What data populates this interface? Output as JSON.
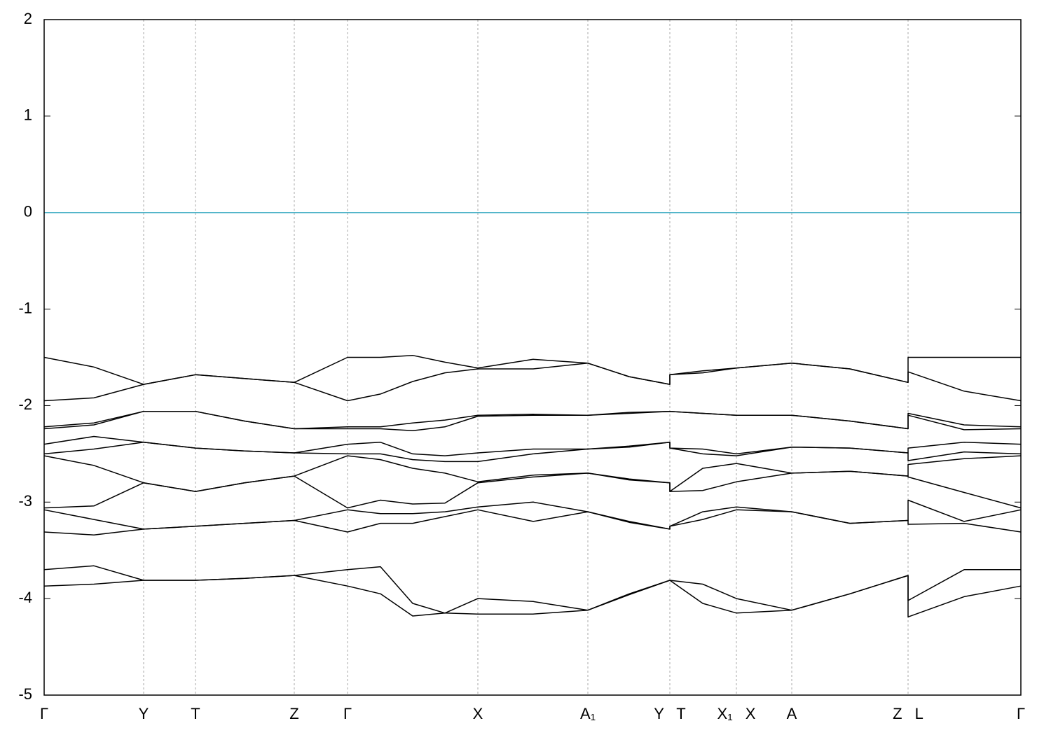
{
  "chart_data": {
    "type": "line",
    "x": [
      0,
      0.71,
      1.42,
      2.16,
      2.86,
      3.57,
      4.33,
      4.8,
      5.26,
      5.72,
      6.19,
      6.98,
      7.76,
      8.35,
      8.93,
      8.93,
      9.4,
      9.88,
      10.67,
      11.5,
      12.33,
      12.33,
      13.13,
      13.94
    ],
    "xlim": [
      0,
      13.94
    ],
    "xticks": [
      {
        "value": 0,
        "label": "Γ"
      },
      {
        "value": 1.42,
        "label": "Y"
      },
      {
        "value": 2.16,
        "label": "T"
      },
      {
        "value": 3.57,
        "label": "Z"
      },
      {
        "value": 4.33,
        "label": "Γ"
      },
      {
        "value": 6.19,
        "label": "X"
      },
      {
        "value": 7.76,
        "label": "A₁"
      },
      {
        "value": 8.93,
        "label": "Y T"
      },
      {
        "value": 9.88,
        "label": "X₁ X"
      },
      {
        "value": 10.67,
        "label": "A"
      },
      {
        "value": 12.33,
        "label": "Z L"
      },
      {
        "value": 13.94,
        "label": "Γ"
      }
    ],
    "ylim": [
      -5,
      2
    ],
    "yticks": [
      -5,
      -4,
      -3,
      -2,
      -1,
      0,
      1,
      2
    ],
    "grid": true,
    "reference_line": {
      "value": 0,
      "color": "#4fb3c8"
    },
    "series": [
      {
        "color": "#000000",
        "values": [
          -1.5,
          -1.6,
          -1.78,
          -1.68,
          -1.72,
          -1.76,
          -1.5,
          -1.5,
          -1.48,
          -1.55,
          -1.61,
          -1.52,
          -1.56,
          -1.7,
          -1.78,
          -1.68,
          -1.64,
          -1.61,
          -1.56,
          -1.62,
          -1.76,
          -1.5,
          -1.5,
          -1.5
        ]
      },
      {
        "color": "#000000",
        "values": [
          -1.95,
          -1.92,
          -1.78,
          -1.68,
          -1.72,
          -1.76,
          -1.95,
          -1.88,
          -1.75,
          -1.66,
          -1.62,
          -1.62,
          -1.56,
          -1.7,
          -1.78,
          -1.68,
          -1.66,
          -1.61,
          -1.56,
          -1.62,
          -1.76,
          -1.65,
          -1.85,
          -1.95
        ]
      },
      {
        "color": "#000000",
        "values": [
          -2.22,
          -2.18,
          -2.06,
          -2.06,
          -2.16,
          -2.24,
          -2.22,
          -2.22,
          -2.18,
          -2.15,
          -2.1,
          -2.09,
          -2.1,
          -2.07,
          -2.06,
          -2.06,
          -2.08,
          -2.1,
          -2.1,
          -2.16,
          -2.24,
          -2.08,
          -2.2,
          -2.22
        ]
      },
      {
        "color": "#000000",
        "values": [
          -2.24,
          -2.2,
          -2.06,
          -2.06,
          -2.16,
          -2.24,
          -2.24,
          -2.24,
          -2.26,
          -2.22,
          -2.11,
          -2.1,
          -2.1,
          -2.08,
          -2.06,
          -2.06,
          -2.08,
          -2.1,
          -2.1,
          -2.16,
          -2.24,
          -2.1,
          -2.25,
          -2.24
        ]
      },
      {
        "color": "#000000",
        "values": [
          -2.4,
          -2.32,
          -2.38,
          -2.44,
          -2.47,
          -2.49,
          -2.4,
          -2.38,
          -2.5,
          -2.52,
          -2.49,
          -2.45,
          -2.45,
          -2.42,
          -2.38,
          -2.44,
          -2.45,
          -2.5,
          -2.43,
          -2.44,
          -2.49,
          -2.44,
          -2.38,
          -2.4
        ]
      },
      {
        "color": "#000000",
        "values": [
          -2.5,
          -2.45,
          -2.38,
          -2.44,
          -2.47,
          -2.49,
          -2.5,
          -2.5,
          -2.56,
          -2.58,
          -2.58,
          -2.5,
          -2.45,
          -2.43,
          -2.38,
          -2.44,
          -2.5,
          -2.52,
          -2.43,
          -2.44,
          -2.49,
          -2.57,
          -2.48,
          -2.5
        ]
      },
      {
        "color": "#000000",
        "values": [
          -2.52,
          -2.62,
          -2.8,
          -2.89,
          -2.8,
          -2.73,
          -2.52,
          -2.56,
          -2.65,
          -2.7,
          -2.79,
          -2.72,
          -2.7,
          -2.76,
          -2.8,
          -2.89,
          -2.65,
          -2.6,
          -2.7,
          -2.68,
          -2.73,
          -2.61,
          -2.55,
          -2.52
        ]
      },
      {
        "color": "#000000",
        "values": [
          -3.06,
          -3.04,
          -2.8,
          -2.89,
          -2.8,
          -2.73,
          -3.06,
          -2.98,
          -3.02,
          -3.01,
          -2.8,
          -2.74,
          -2.7,
          -2.77,
          -2.8,
          -2.89,
          -2.88,
          -2.79,
          -2.7,
          -2.68,
          -2.73,
          -2.74,
          -2.9,
          -3.06
        ]
      },
      {
        "color": "#000000",
        "values": [
          -3.08,
          -3.18,
          -3.28,
          -3.25,
          -3.22,
          -3.19,
          -3.08,
          -3.12,
          -3.12,
          -3.1,
          -3.05,
          -3.0,
          -3.1,
          -3.2,
          -3.28,
          -3.25,
          -3.1,
          -3.05,
          -3.1,
          -3.22,
          -3.19,
          -2.98,
          -3.2,
          -3.08
        ]
      },
      {
        "color": "#000000",
        "values": [
          -3.31,
          -3.34,
          -3.28,
          -3.25,
          -3.22,
          -3.19,
          -3.31,
          -3.22,
          -3.22,
          -3.15,
          -3.08,
          -3.2,
          -3.1,
          -3.21,
          -3.28,
          -3.25,
          -3.18,
          -3.08,
          -3.1,
          -3.22,
          -3.19,
          -3.23,
          -3.22,
          -3.31
        ]
      },
      {
        "color": "#000000",
        "values": [
          -3.7,
          -3.66,
          -3.81,
          -3.81,
          -3.79,
          -3.76,
          -3.7,
          -3.67,
          -4.05,
          -4.15,
          -4.0,
          -4.03,
          -4.12,
          -3.95,
          -3.81,
          -3.81,
          -3.85,
          -4.0,
          -4.12,
          -3.95,
          -3.76,
          -4.02,
          -3.7,
          -3.7
        ]
      },
      {
        "color": "#000000",
        "values": [
          -3.87,
          -3.85,
          -3.81,
          -3.81,
          -3.79,
          -3.76,
          -3.87,
          -3.95,
          -4.18,
          -4.15,
          -4.16,
          -4.16,
          -4.12,
          -3.96,
          -3.81,
          -3.81,
          -4.05,
          -4.15,
          -4.12,
          -3.95,
          -3.76,
          -4.19,
          -3.98,
          -3.87
        ]
      }
    ]
  }
}
